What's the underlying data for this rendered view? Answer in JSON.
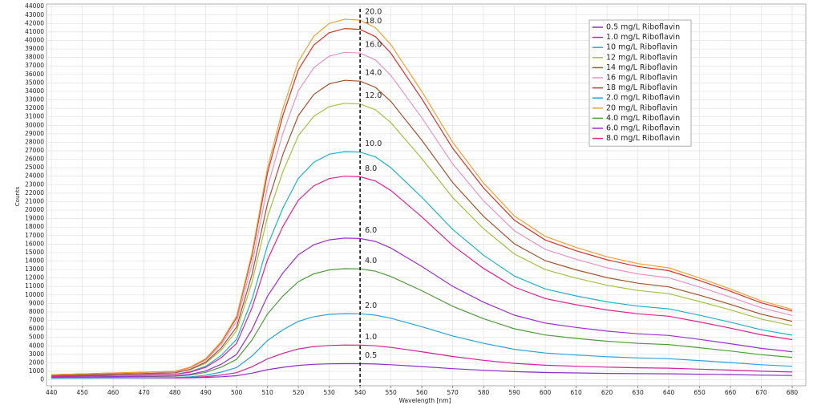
{
  "chart_data": {
    "type": "line",
    "x_label": "Wavelength [nm]",
    "y_label": "Counts",
    "x": [
      440,
      450,
      460,
      470,
      480,
      485,
      490,
      495,
      500,
      505,
      510,
      515,
      520,
      525,
      530,
      535,
      540,
      545,
      550,
      560,
      570,
      580,
      590,
      600,
      610,
      620,
      630,
      640,
      650,
      660,
      670,
      680
    ],
    "xlim": [
      438.4,
      684.4
    ],
    "xticks": [
      440,
      450,
      460,
      470,
      480,
      490,
      500,
      510,
      520,
      530,
      540,
      550,
      560,
      570,
      580,
      590,
      600,
      610,
      620,
      630,
      640,
      650,
      660,
      670,
      680
    ],
    "ylim": [
      -700,
      44300
    ],
    "yticks": [
      0,
      1000,
      2000,
      3000,
      4000,
      5000,
      6000,
      7000,
      8000,
      9000,
      10000,
      11000,
      12000,
      13000,
      14000,
      15000,
      16000,
      17000,
      18000,
      19000,
      20000,
      21000,
      22000,
      23000,
      24000,
      25000,
      26000,
      27000,
      28000,
      29000,
      30000,
      31000,
      32000,
      33000,
      34000,
      35000,
      36000,
      37000,
      38000,
      39000,
      40000,
      41000,
      42000,
      43000,
      44000
    ],
    "grid": true,
    "vline": 540,
    "series": [
      {
        "name": "0.5 mg/L Riboflavin",
        "color": "#8a2fc4",
        "annotation": "0.5",
        "values": [
          200,
          200,
          210,
          210,
          220,
          240,
          280,
          360,
          480,
          780,
          1190,
          1470,
          1700,
          1820,
          1880,
          1900,
          1900,
          1860,
          1780,
          1560,
          1310,
          1120,
          960,
          860,
          810,
          760,
          730,
          710,
          660,
          610,
          550,
          510
        ]
      },
      {
        "name": "1.0 mg/L Riboflavin",
        "color": "#d41f9c",
        "annotation": "1.0",
        "values": [
          200,
          210,
          220,
          230,
          240,
          280,
          380,
          560,
          840,
          1540,
          2470,
          3120,
          3640,
          3910,
          4050,
          4100,
          4090,
          4010,
          3820,
          3310,
          2750,
          2300,
          1940,
          1720,
          1600,
          1490,
          1420,
          1370,
          1260,
          1140,
          1010,
          920
        ]
      },
      {
        "name": "10 mg/L Riboflavin",
        "color": "#1fb2c6",
        "label_color": "#e02424",
        "annotation": "10.0",
        "values": [
          400,
          460,
          530,
          590,
          650,
          970,
          1600,
          2870,
          4760,
          9510,
          15830,
          20260,
          23740,
          25640,
          26590,
          26900,
          26840,
          26270,
          25000,
          21530,
          17730,
          14690,
          12230,
          10710,
          9890,
          9190,
          8690,
          8370,
          7610,
          6790,
          5900,
          5270
        ]
      },
      {
        "name": "12 mg/L Riboflavin",
        "color": "#a3c042",
        "annotation": "12.0",
        "values": [
          500,
          580,
          650,
          730,
          810,
          1190,
          1960,
          3490,
          5790,
          11530,
          19190,
          24550,
          28770,
          31060,
          32210,
          32600,
          32520,
          31830,
          30300,
          26080,
          21490,
          17810,
          14820,
          12990,
          11990,
          11150,
          10530,
          10150,
          9230,
          8240,
          7160,
          6400
        ]
      },
      {
        "name": "14 mg/L Riboflavin",
        "color": "#a0522d",
        "annotation": "14.0",
        "values": [
          500,
          580,
          670,
          750,
          830,
          1250,
          2080,
          3740,
          6230,
          12460,
          20760,
          26580,
          31150,
          33640,
          34880,
          35300,
          35210,
          34470,
          32810,
          28240,
          23260,
          19270,
          16030,
          14040,
          12960,
          12040,
          11380,
          10960,
          9970,
          8890,
          7730,
          6890
        ]
      },
      {
        "name": "16 mg/L Riboflavin",
        "color": "#e892c8",
        "annotation": "16.0",
        "values": [
          600,
          690,
          780,
          870,
          960,
          1420,
          2320,
          4140,
          6860,
          13660,
          22730,
          29080,
          34070,
          36790,
          38150,
          38600,
          38510,
          37700,
          35880,
          30890,
          25450,
          21100,
          17560,
          15380,
          14210,
          13210,
          12480,
          12030,
          10940,
          9760,
          8490,
          7580
        ]
      },
      {
        "name": "18 mg/L Riboflavin",
        "color": "#d4322a",
        "annotation": "18.0",
        "values": [
          600,
          700,
          800,
          890,
          990,
          1480,
          2450,
          4400,
          7320,
          14630,
          24370,
          31180,
          36540,
          39460,
          40920,
          41410,
          41310,
          40440,
          38490,
          33130,
          27290,
          22610,
          18810,
          16480,
          15210,
          14140,
          13360,
          12870,
          11700,
          10440,
          9070,
          8100
        ]
      },
      {
        "name": "2.0 mg/L Riboflavin",
        "color": "#2aa2d6",
        "annotation": "2.0",
        "values": [
          200,
          220,
          240,
          250,
          270,
          360,
          540,
          910,
          1450,
          2810,
          4630,
          5900,
          6890,
          7440,
          7710,
          7800,
          7780,
          7620,
          7260,
          6260,
          5170,
          4300,
          3590,
          3160,
          2920,
          2720,
          2580,
          2490,
          2270,
          2030,
          1780,
          1600
        ]
      },
      {
        "name": "20 mg/L Riboflavin",
        "color": "#eca234",
        "annotation": "20.0",
        "values": [
          600,
          700,
          800,
          900,
          1000,
          1500,
          2500,
          4500,
          7500,
          15000,
          25000,
          32000,
          37500,
          40500,
          42000,
          42500,
          42400,
          41500,
          39500,
          34000,
          28000,
          23200,
          19300,
          16900,
          15600,
          14500,
          13700,
          13200,
          12000,
          10700,
          9300,
          8300
        ]
      },
      {
        "name": "4.0 mg/L Riboflavin",
        "color": "#4f9a3c",
        "annotation": "4.0",
        "values": [
          300,
          330,
          360,
          390,
          420,
          570,
          880,
          1490,
          2410,
          4700,
          7750,
          9890,
          11570,
          12490,
          12950,
          13100,
          13070,
          12800,
          12180,
          10500,
          8670,
          7200,
          6010,
          5280,
          4880,
          4550,
          4300,
          4150,
          3780,
          3390,
          2960,
          2650
        ]
      },
      {
        "name": "6.0 mg/L Riboflavin",
        "color": "#9a2fd0",
        "annotation": "6.0",
        "values": [
          300,
          340,
          380,
          420,
          460,
          650,
          1040,
          1830,
          3000,
          5940,
          9850,
          12590,
          14740,
          15920,
          16500,
          16700,
          16660,
          16310,
          15530,
          13370,
          11020,
          9150,
          7620,
          6680,
          6170,
          5740,
          5430,
          5230,
          4760,
          4250,
          3710,
          3310
        ]
      },
      {
        "name": "8.0 mg/L Riboflavin",
        "color": "#e5208e",
        "annotation": "8.0",
        "values": [
          400,
          460,
          510,
          570,
          630,
          910,
          1470,
          2600,
          4290,
          8510,
          14140,
          18080,
          21180,
          22870,
          23720,
          24000,
          23940,
          23440,
          22310,
          19210,
          15830,
          13130,
          10930,
          9580,
          8850,
          8230,
          7780,
          7500,
          6820,
          6090,
          5300,
          4740
        ]
      }
    ]
  }
}
